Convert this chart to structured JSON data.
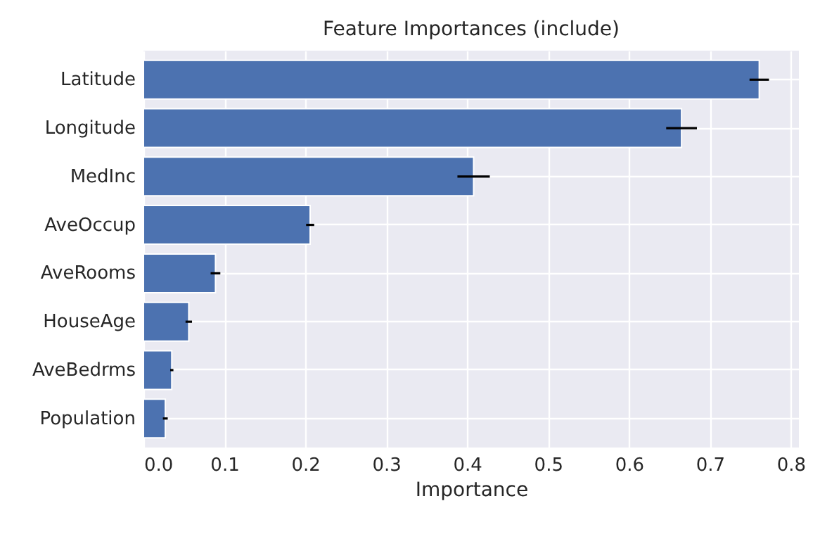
{
  "chart_data": {
    "type": "bar",
    "orientation": "horizontal",
    "title": "Feature Importances (include)",
    "xlabel": "Importance",
    "categories": [
      "Latitude",
      "Longitude",
      "MedInc",
      "AveOccup",
      "AveRooms",
      "HouseAge",
      "AveBedrms",
      "Population"
    ],
    "values": [
      0.761,
      0.665,
      0.408,
      0.206,
      0.089,
      0.056,
      0.035,
      0.027
    ],
    "errors": [
      0.012,
      0.019,
      0.02,
      0.005,
      0.006,
      0.004,
      0.002,
      0.003
    ],
    "color": "#4c72b0",
    "xlim": [
      0,
      0.81
    ],
    "xticks": [
      {
        "value": 0,
        "label": "0.0"
      },
      {
        "value": 0.1,
        "label": "0.1"
      },
      {
        "value": 0.2,
        "label": "0.2"
      },
      {
        "value": 0.3,
        "label": "0.3"
      },
      {
        "value": 0.4,
        "label": "0.4"
      },
      {
        "value": 0.5,
        "label": "0.5"
      },
      {
        "value": 0.6,
        "label": "0.6"
      },
      {
        "value": 0.7,
        "label": "0.7"
      },
      {
        "value": 0.8,
        "label": "0.8"
      }
    ],
    "grid": true
  }
}
